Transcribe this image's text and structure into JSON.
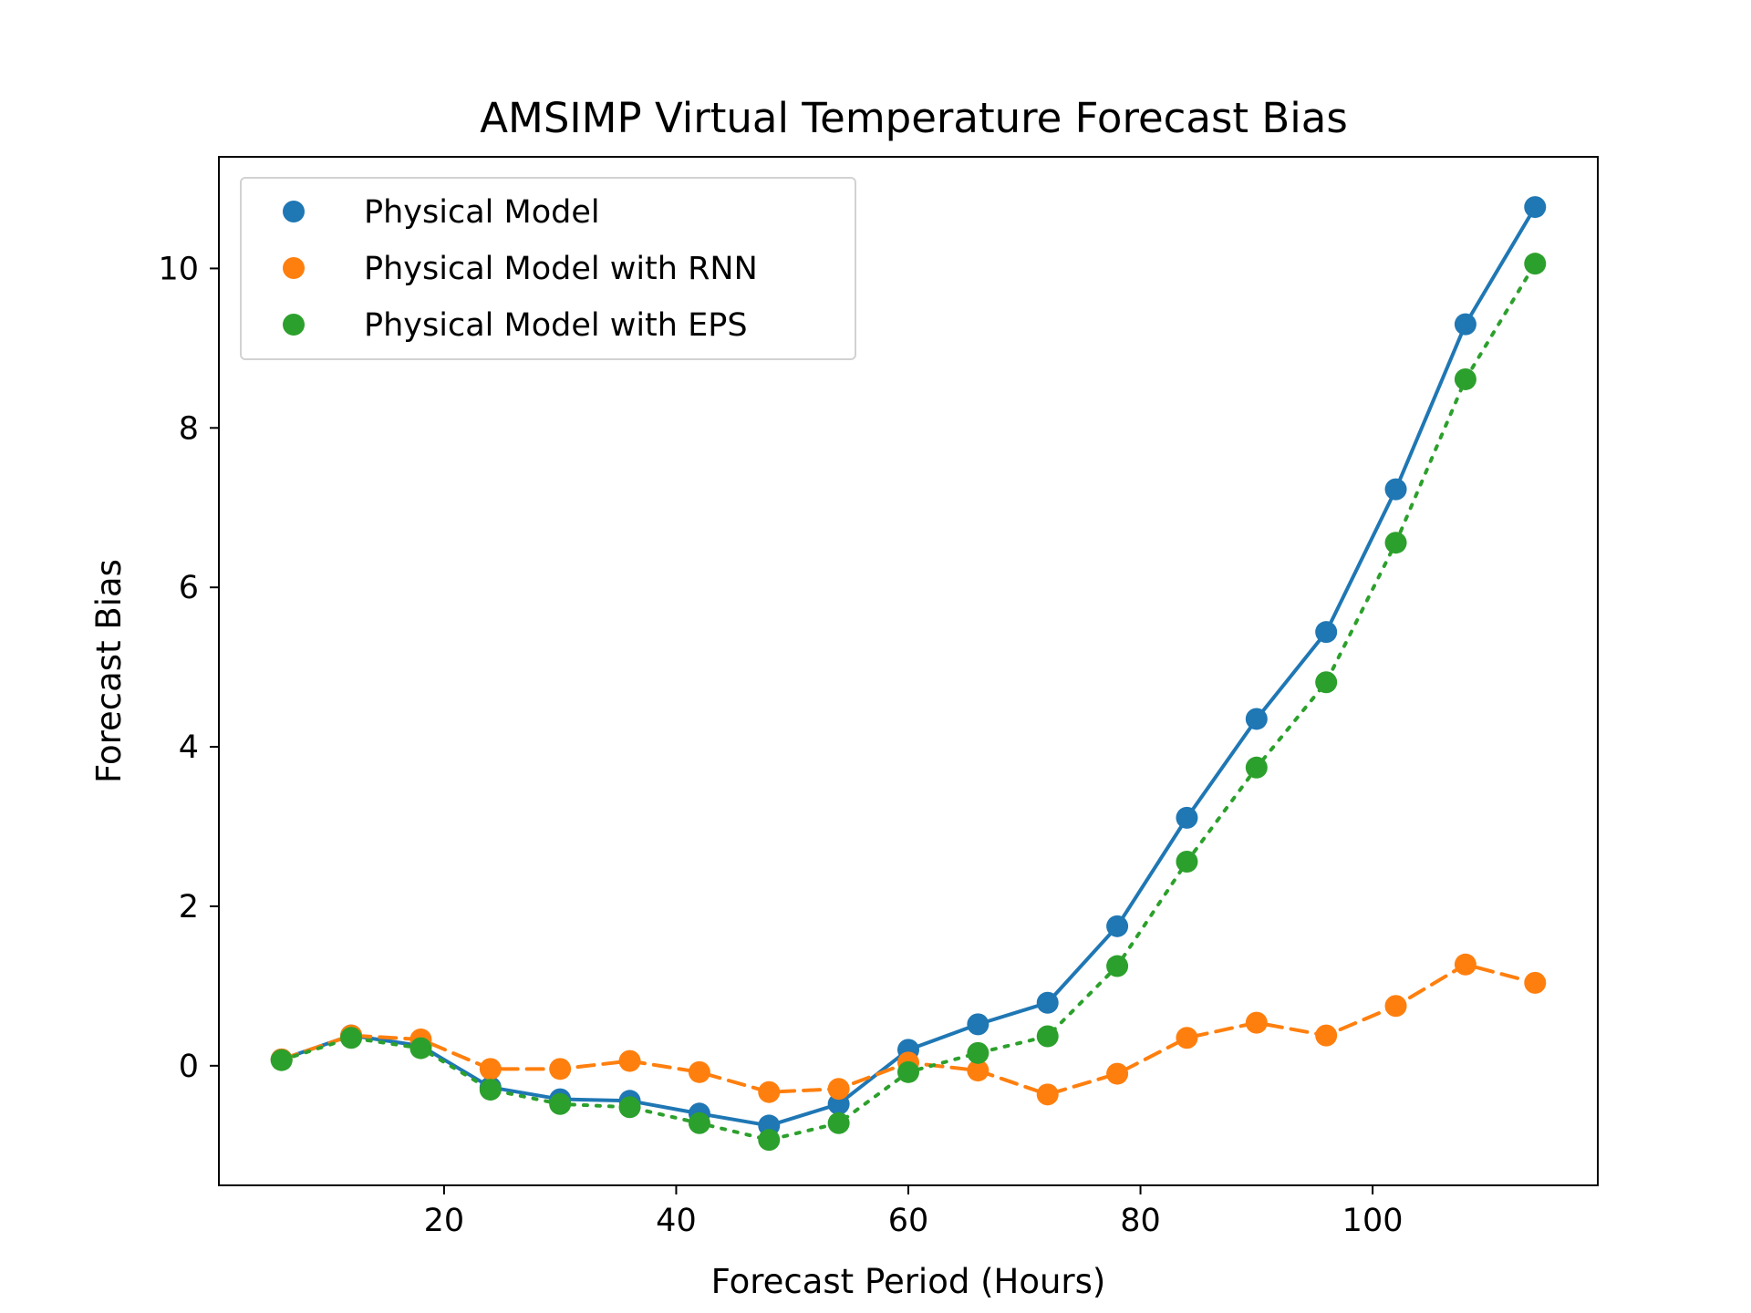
{
  "chart_data": {
    "type": "line",
    "title": "AMSIMP Virtual Temperature Forecast Bias",
    "xlabel": "Forecast Period (Hours)",
    "ylabel": "Forecast Bias",
    "x": [
      6,
      12,
      18,
      24,
      30,
      36,
      42,
      48,
      54,
      60,
      66,
      72,
      78,
      84,
      90,
      96,
      102,
      108,
      114
    ],
    "xlim": [
      0.6,
      119.4
    ],
    "ylim": [
      -1.5,
      11.4
    ],
    "xticks": [
      20,
      40,
      60,
      80,
      100
    ],
    "yticks": [
      0,
      2,
      4,
      6,
      8,
      10
    ],
    "grid": false,
    "legend_position": "top-left",
    "series": [
      {
        "name": "Physical Model",
        "color": "#1f77b4",
        "line_style": "solid",
        "values": [
          0.08,
          0.38,
          0.25,
          -0.27,
          -0.42,
          -0.44,
          -0.6,
          -0.75,
          -0.48,
          0.2,
          0.52,
          0.79,
          1.75,
          3.11,
          4.35,
          5.44,
          7.23,
          9.3,
          10.77
        ]
      },
      {
        "name": "Physical Model with RNN",
        "color": "#ff7f0e",
        "line_style": "dashed",
        "values": [
          0.08,
          0.38,
          0.33,
          -0.04,
          -0.04,
          0.06,
          -0.08,
          -0.33,
          -0.29,
          0.04,
          -0.06,
          -0.36,
          -0.1,
          0.35,
          0.54,
          0.38,
          0.75,
          1.27,
          1.04
        ]
      },
      {
        "name": "Physical Model with EPS",
        "color": "#2ca02c",
        "line_style": "dotted",
        "values": [
          0.07,
          0.35,
          0.22,
          -0.3,
          -0.48,
          -0.52,
          -0.72,
          -0.93,
          -0.72,
          -0.08,
          0.16,
          0.37,
          1.25,
          2.56,
          3.74,
          4.81,
          6.56,
          8.61,
          10.06
        ]
      }
    ]
  }
}
